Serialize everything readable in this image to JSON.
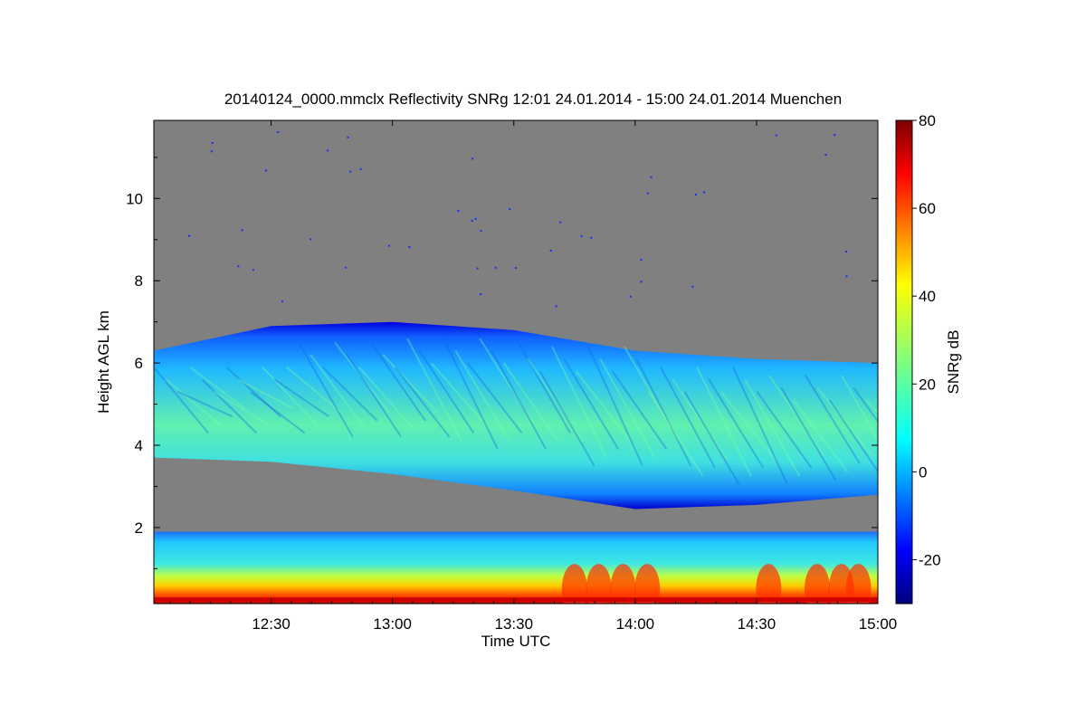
{
  "chart_data": {
    "type": "heatmap",
    "title": "20140124_0000.mmclx Reflectivity SNRg   12:01 24.01.2014 - 15:00 24.01.2014 Muenchen",
    "xlabel": "Time UTC",
    "ylabel": "Height AGL km",
    "x_range_hours": [
      12.0167,
      15.0
    ],
    "y_range_km": [
      0.15,
      11.9
    ],
    "x_ticks": [
      {
        "hour": 12.5,
        "label": "12:30"
      },
      {
        "hour": 13.0,
        "label": "13:00"
      },
      {
        "hour": 13.5,
        "label": "13:30"
      },
      {
        "hour": 14.0,
        "label": "14:00"
      },
      {
        "hour": 14.5,
        "label": "14:30"
      },
      {
        "hour": 15.0,
        "label": "15:00"
      }
    ],
    "y_ticks": [
      {
        "km": 2,
        "label": "2"
      },
      {
        "km": 4,
        "label": "4"
      },
      {
        "km": 6,
        "label": "6"
      },
      {
        "km": 8,
        "label": "8"
      },
      {
        "km": 10,
        "label": "10"
      }
    ],
    "colorbar": {
      "label": "SNRg dB",
      "range": [
        -30,
        80
      ],
      "colormap": "jet",
      "ticks": [
        {
          "value": -20,
          "label": "-20"
        },
        {
          "value": 0,
          "label": "0"
        },
        {
          "value": 20,
          "label": "20"
        },
        {
          "value": 40,
          "label": "40"
        },
        {
          "value": 60,
          "label": "60"
        },
        {
          "value": 80,
          "label": "80"
        }
      ]
    },
    "no_signal_color": "#808080",
    "cloud_layer": {
      "time_hours": [
        12.0167,
        12.5,
        13.0,
        13.5,
        14.0,
        14.5,
        15.0
      ],
      "top_km": [
        6.3,
        6.9,
        7.0,
        6.8,
        6.3,
        6.1,
        6.0
      ],
      "base_km": [
        3.7,
        3.6,
        3.3,
        2.9,
        2.45,
        2.55,
        2.8
      ],
      "typical_snr_db": 15
    },
    "boundary_layer": {
      "top_km": 1.9,
      "typical_snr_db": [
        5,
        60
      ]
    },
    "grid": false
  }
}
